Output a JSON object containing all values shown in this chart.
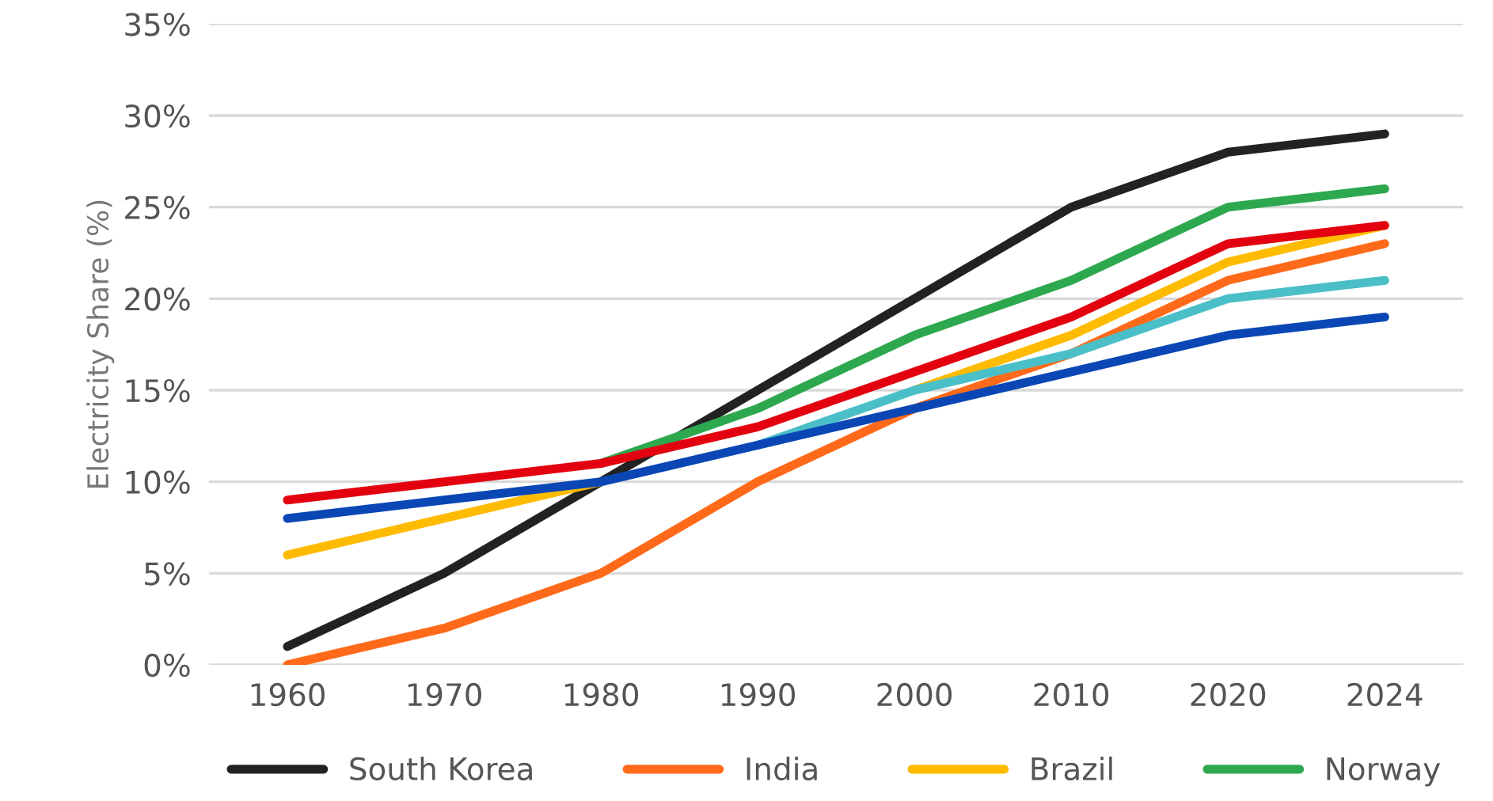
{
  "chart_data": {
    "type": "line",
    "ylabel": "Electricity Share (%)",
    "categories": [
      "1960",
      "1970",
      "1980",
      "1990",
      "2000",
      "2010",
      "2020",
      "2024"
    ],
    "series": [
      {
        "name": "South Korea",
        "color": "#222222",
        "values": [
          1,
          5,
          10,
          15,
          20,
          25,
          28,
          29
        ]
      },
      {
        "name": "India",
        "color": "#ff6a1a",
        "values": [
          0,
          2,
          5,
          10,
          14,
          17,
          21,
          23
        ]
      },
      {
        "name": "Brazil",
        "color": "#ffbb00",
        "values": [
          6,
          8,
          10,
          null,
          15,
          18,
          22,
          24
        ]
      },
      {
        "name": "Norway",
        "color": "#2ea84f",
        "values": [
          null,
          null,
          11,
          14,
          18,
          21,
          25,
          26
        ]
      },
      {
        "color": "#4bbfc8",
        "values": [
          null,
          null,
          null,
          12,
          15,
          17,
          20,
          21
        ]
      },
      {
        "color": "#0a47b5",
        "values": [
          8,
          9,
          10,
          12,
          14,
          16,
          18,
          19
        ]
      },
      {
        "color": "#e3000f",
        "values": [
          9,
          10,
          11,
          13,
          16,
          19,
          23,
          24
        ]
      }
    ],
    "ylim": [
      0,
      35
    ],
    "yticks": [
      {
        "value": 0,
        "label": "0%"
      },
      {
        "value": 5,
        "label": "5%"
      },
      {
        "value": 10,
        "label": "10%"
      },
      {
        "value": 15,
        "label": "15%"
      },
      {
        "value": 20,
        "label": "20%"
      },
      {
        "value": 25,
        "label": "25%"
      },
      {
        "value": 30,
        "label": "30%"
      },
      {
        "value": 35,
        "label": "35%"
      }
    ],
    "grid": "y",
    "legend": "bottom",
    "marker": "none",
    "line_style": "solid"
  }
}
